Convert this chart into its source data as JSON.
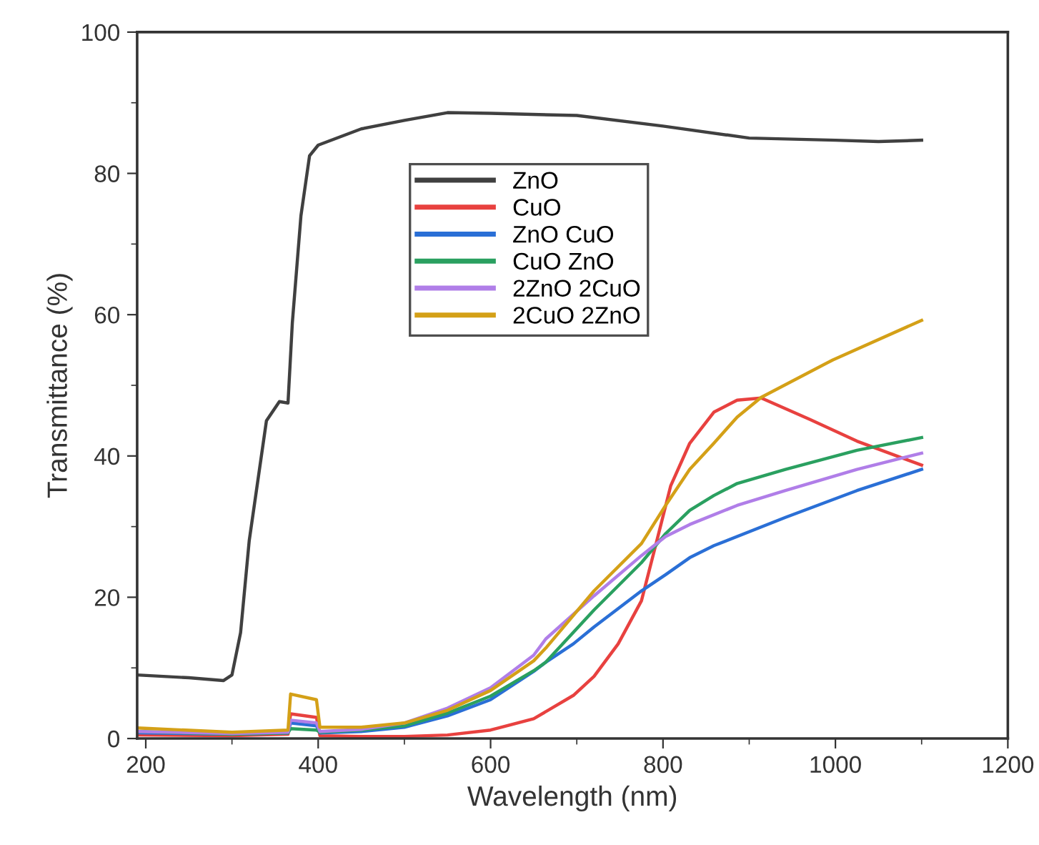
{
  "chart_data": {
    "type": "line",
    "xlabel": "Wavelength (nm)",
    "ylabel": "Transmittance (%)",
    "xlim": [
      190,
      1200
    ],
    "xticks": [
      200,
      400,
      600,
      800,
      1000,
      1200
    ],
    "ylim": [
      0,
      100
    ],
    "yticks": [
      0,
      20,
      40,
      60,
      80,
      100
    ],
    "grid": false,
    "legend": "top",
    "marker": "none",
    "line_style": "solid",
    "series": [
      {
        "name": "ZnO",
        "color": "#404040",
        "x": [
          190,
          250,
          290,
          300,
          310,
          320,
          340,
          355,
          365,
          370,
          380,
          390,
          400,
          450,
          500,
          550,
          600,
          700,
          800,
          900,
          1000,
          1050,
          1100
        ],
        "values": [
          9.0,
          8.6,
          8.2,
          9.0,
          15,
          28,
          45,
          47.7,
          47.5,
          58.8,
          74,
          82.5,
          84,
          86.3,
          87.5,
          88.6,
          88.5,
          88.2,
          86.7,
          85.0,
          84.7,
          84.5,
          84.7
        ]
      },
      {
        "name": "CuO",
        "color": "#e8413f",
        "x": [
          190,
          300,
          365,
          368,
          398,
          402,
          450,
          500,
          550,
          600,
          650,
          696,
          720,
          748,
          775,
          792,
          809,
          831,
          859,
          886,
          914,
          970,
          1025,
          1100
        ],
        "values": [
          0.5,
          0.4,
          0.6,
          3.5,
          3.0,
          0.4,
          0.3,
          0.3,
          0.5,
          1.2,
          2.8,
          6.1,
          8.8,
          13.4,
          19.5,
          27.6,
          35.8,
          41.8,
          46.2,
          47.9,
          48.2,
          45.2,
          42.1,
          38.7
        ]
      },
      {
        "name": "ZnO CuO",
        "color": "#2a6fd6",
        "x": [
          190,
          300,
          365,
          368,
          398,
          402,
          450,
          500,
          550,
          600,
          650,
          664,
          696,
          720,
          775,
          803,
          831,
          859,
          942,
          1025,
          1100
        ],
        "values": [
          0.8,
          0.6,
          0.8,
          2.2,
          1.8,
          0.8,
          1.0,
          1.6,
          3.2,
          5.5,
          9.5,
          10.8,
          13.4,
          15.8,
          20.9,
          23.2,
          25.6,
          27.3,
          31.3,
          35.1,
          38.1
        ]
      },
      {
        "name": "CuO ZnO",
        "color": "#2aa060",
        "x": [
          190,
          300,
          365,
          368,
          398,
          402,
          450,
          500,
          550,
          600,
          650,
          664,
          720,
          775,
          803,
          831,
          859,
          886,
          942,
          1025,
          1100
        ],
        "values": [
          1.0,
          0.6,
          0.8,
          1.4,
          1.2,
          0.9,
          1.2,
          1.8,
          3.6,
          6.0,
          9.6,
          10.8,
          18.2,
          24.9,
          29.0,
          32.3,
          34.4,
          36.1,
          38.1,
          40.8,
          42.6
        ]
      },
      {
        "name": "2ZnO 2CuO",
        "color": "#b07ee8",
        "x": [
          190,
          300,
          365,
          368,
          398,
          402,
          450,
          500,
          550,
          600,
          650,
          664,
          720,
          775,
          803,
          831,
          886,
          942,
          1025,
          1100
        ],
        "values": [
          1.0,
          0.7,
          0.9,
          2.6,
          2.2,
          1.0,
          1.3,
          2.2,
          4.3,
          7.2,
          11.8,
          14.1,
          20.2,
          25.9,
          28.6,
          30.3,
          33.0,
          35.1,
          38.1,
          40.4
        ]
      },
      {
        "name": "2CuO 2ZnO",
        "color": "#d4a017",
        "x": [
          190,
          300,
          365,
          368,
          398,
          402,
          450,
          500,
          550,
          600,
          650,
          664,
          720,
          775,
          803,
          831,
          859,
          886,
          914,
          997,
          1100
        ],
        "values": [
          1.5,
          0.9,
          1.2,
          6.3,
          5.5,
          1.6,
          1.6,
          2.2,
          4.0,
          6.8,
          11.0,
          12.8,
          20.9,
          27.6,
          33.0,
          38.1,
          41.8,
          45.5,
          48.3,
          53.6,
          59.2
        ]
      }
    ]
  }
}
